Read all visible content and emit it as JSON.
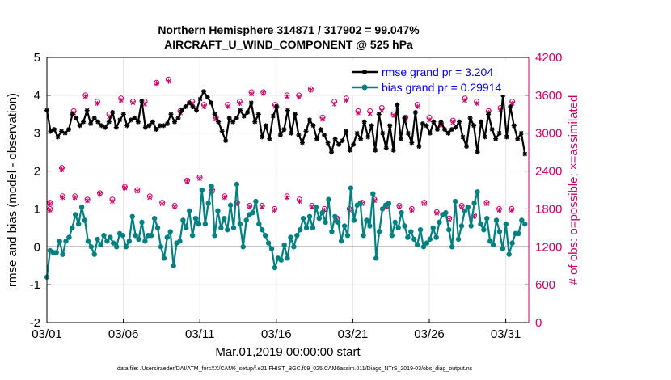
{
  "chart_data": {
    "type": "line",
    "title": "Northern Hemisphere 314871 / 317902 = 99.047%",
    "subtitle": "AIRCRAFT_U_WIND_COMPONENT @ 525 hPa",
    "xlabel": "Mar.01,2019 00:00:00 start",
    "ylabel": "rmse and bias (model - observation)",
    "ylabel_right": "# of obs: o=possible; ×=assimilated",
    "xlim": [
      0,
      31.5
    ],
    "ylim": [
      -2,
      5
    ],
    "ylim_right": [
      0,
      4200
    ],
    "x_ticks": [
      0,
      5,
      10,
      15,
      20,
      25,
      30
    ],
    "x_tick_labels": [
      "03/01",
      "03/06",
      "03/11",
      "03/16",
      "03/21",
      "03/26",
      "03/31"
    ],
    "y_ticks": [
      -2,
      -1,
      0,
      1,
      2,
      3,
      4,
      5
    ],
    "y_tick_labels": [
      "-2",
      "-1",
      "0",
      "1",
      "2",
      "3",
      "4",
      "5"
    ],
    "y_right_ticks": [
      0,
      600,
      1200,
      1800,
      2400,
      3000,
      3600,
      4200
    ],
    "y_right_tick_labels": [
      "0",
      "600",
      "1200",
      "1800",
      "2400",
      "3000",
      "3600",
      "4200"
    ],
    "legend": [
      "rmse grand pr = 3.204",
      "bias grand pr = 0.29914"
    ],
    "legend_position": "top-right",
    "grid": true,
    "x_step_days": 0.25,
    "series": [
      {
        "name": "rmse",
        "color": "#000000",
        "marker": "asterisk",
        "values": [
          3.6,
          3.05,
          3.1,
          2.9,
          3.05,
          3.0,
          3.1,
          3.5,
          3.4,
          3.2,
          3.3,
          3.6,
          3.25,
          3.4,
          3.3,
          3.2,
          3.15,
          3.3,
          3.55,
          3.15,
          3.35,
          3.5,
          3.2,
          3.35,
          3.4,
          3.3,
          3.85,
          3.15,
          3.2,
          3.3,
          3.1,
          3.2,
          3.2,
          3.25,
          3.5,
          3.3,
          3.4,
          3.6,
          3.7,
          3.8,
          3.7,
          3.6,
          3.9,
          4.1,
          3.95,
          3.8,
          3.5,
          3.3,
          3.05,
          2.8,
          3.4,
          3.3,
          3.4,
          3.6,
          3.45,
          3.55,
          3.8,
          3.3,
          3.5,
          2.9,
          3.2,
          2.85,
          3.45,
          3.7,
          2.95,
          3.1,
          3.6,
          3.0,
          3.5,
          2.95,
          2.75,
          3.05,
          3.35,
          3.2,
          2.85,
          3.1,
          2.95,
          2.75,
          2.5,
          2.85,
          2.7,
          2.8,
          3.05,
          2.55,
          2.7,
          3.0,
          2.85,
          3.3,
          2.9,
          3.2,
          2.55,
          3.5,
          3.0,
          2.6,
          3.2,
          2.55,
          3.75,
          2.85,
          3.4,
          3.0,
          2.75,
          3.55,
          2.65,
          3.25,
          3.2,
          3.0,
          3.3,
          3.1,
          3.3,
          3.1,
          3.0,
          3.1,
          3.15,
          3.3,
          2.9,
          2.65,
          3.4,
          3.2,
          2.5,
          3.3,
          2.9,
          3.5,
          3.1,
          2.85,
          3.0,
          4.0,
          2.9,
          3.7,
          3.2,
          2.85,
          3.0,
          2.45
        ]
      },
      {
        "name": "bias",
        "color": "#008080",
        "marker": "circle",
        "values": [
          -0.8,
          -0.1,
          -0.15,
          -0.15,
          0.15,
          -0.2,
          0.15,
          0.25,
          0.5,
          0.85,
          0.6,
          1.05,
          0.7,
          0.15,
          0.0,
          -0.2,
          0.2,
          0.05,
          0.3,
          0.15,
          0.25,
          0.1,
          0.0,
          0.35,
          0.3,
          0.0,
          0.15,
          0.8,
          0.3,
          0.2,
          0.65,
          0.15,
          0.3,
          0.3,
          0.75,
          0.5,
          0.0,
          -0.3,
          0.25,
          0.4,
          -0.5,
          0.1,
          0.15,
          0.7,
          0.5,
          0.95,
          0.3,
          0.75,
          0.6,
          1.5,
          0.6,
          1.15,
          1.6,
          0.3,
          0.95,
          0.5,
          0.75,
          0.45,
          1.1,
          0.5,
          1.65,
          0.6,
          0.0,
          0.7,
          0.85,
          0.9,
          1.2,
          0.6,
          0.45,
          0.3,
          0.1,
          -0.05,
          -0.55,
          -0.3,
          -0.35,
          0.05,
          -0.3,
          0.25,
          0.0,
          0.3,
          0.45,
          0.75,
          0.5,
          0.8,
          0.5,
          1.05,
          0.75,
          0.9,
          0.65,
          1.25,
          0.4,
          0.8,
          0.65,
          0.15,
          0.55,
          0.3,
          1.55,
          0.7,
          1.1,
          1.15,
          0.3,
          0.7,
          0.55,
          1.4,
          -0.3,
          0.4,
          1.0,
          1.1,
          1.15,
          0.3,
          0.65,
          0.5,
          0.9,
          0.55,
          0.25,
          0.4,
          0.2,
          0.05,
          0.45,
          0.0,
          0.1,
          0.2,
          0.5,
          0.25,
          0.65,
          0.85,
          0.9,
          0.45,
          0.0,
          1.2,
          0.2,
          0.55,
          0.95,
          1.05,
          0.55,
          1.15,
          1.45,
          0.6,
          0.45,
          0.75,
          0.15,
          0.05,
          0.7,
          0.4,
          -0.05,
          0.6,
          -0.2,
          0.1,
          0.35,
          0.35,
          0.7,
          0.6
        ]
      },
      {
        "name": "possible rmse",
        "color": "#cc0066",
        "marker": "o",
        "axis": "right",
        "values": [
          1900,
          2450,
          3350,
          3600,
          3500,
          3300,
          3550,
          3500,
          3500,
          3800,
          3850,
          3350,
          3500,
          3450,
          3250,
          3450,
          3500,
          3650,
          3650,
          3450,
          3600,
          3600,
          3700,
          3250,
          3500,
          3550,
          3350,
          3350,
          3400,
          3300,
          3250,
          3450,
          3250,
          3150,
          3200,
          3550,
          3500,
          3350,
          3400,
          3500
        ]
      },
      {
        "name": "assimilated rmse",
        "color": "#cc0066",
        "marker": "x",
        "axis": "right",
        "values": [
          1880,
          2420,
          3320,
          3580,
          3470,
          3260,
          3520,
          3480,
          3460,
          3790,
          3820,
          3320,
          3470,
          3420,
          3220,
          3420,
          3470,
          3620,
          3630,
          3420,
          3580,
          3570,
          3680,
          3220,
          3460,
          3520,
          3320,
          3310,
          3360,
          3280,
          3210,
          3420,
          3210,
          3120,
          3170,
          3520,
          3470,
          3330,
          3370,
          3470
        ]
      },
      {
        "name": "possible bias",
        "color": "#cc0066",
        "marker": "o",
        "axis": "right",
        "values": [
          1800,
          2000,
          2000,
          1950,
          2050,
          1950,
          2150,
          2100,
          2000,
          1900,
          1850,
          2250,
          2300,
          2100,
          2000,
          1900,
          1850,
          1850,
          1800,
          2000,
          1950,
          1850,
          1800,
          1650,
          1800,
          1900,
          1950,
          1850,
          1850,
          1800,
          1900,
          1750,
          1650,
          1850,
          1700,
          1900,
          1800,
          1800
        ]
      },
      {
        "name": "assimilated bias",
        "color": "#cc0066",
        "marker": "x",
        "axis": "right",
        "values": [
          1780,
          1980,
          1980,
          1930,
          2030,
          1920,
          2130,
          2080,
          1980,
          1880,
          1830,
          2230,
          2280,
          2080,
          1980,
          1880,
          1830,
          1830,
          1780,
          1980,
          1920,
          1830,
          1780,
          1630,
          1780,
          1880,
          1930,
          1830,
          1830,
          1780,
          1880,
          1730,
          1630,
          1830,
          1680,
          1880,
          1780,
          1780
        ]
      }
    ]
  },
  "footer": "data file: /Users/raeder/DAI/ATM_forcXX/CAM6_setup/f.e21.FHIST_BGC.f09_025.CAM6assim.011/Diags_NTrS_2019-03/obs_diag_output.nc",
  "colors": {
    "rmse": "#000000",
    "bias": "#008080",
    "obs": "#cc0066",
    "legend_text": "#0000ee",
    "zero_line": "#888888"
  }
}
